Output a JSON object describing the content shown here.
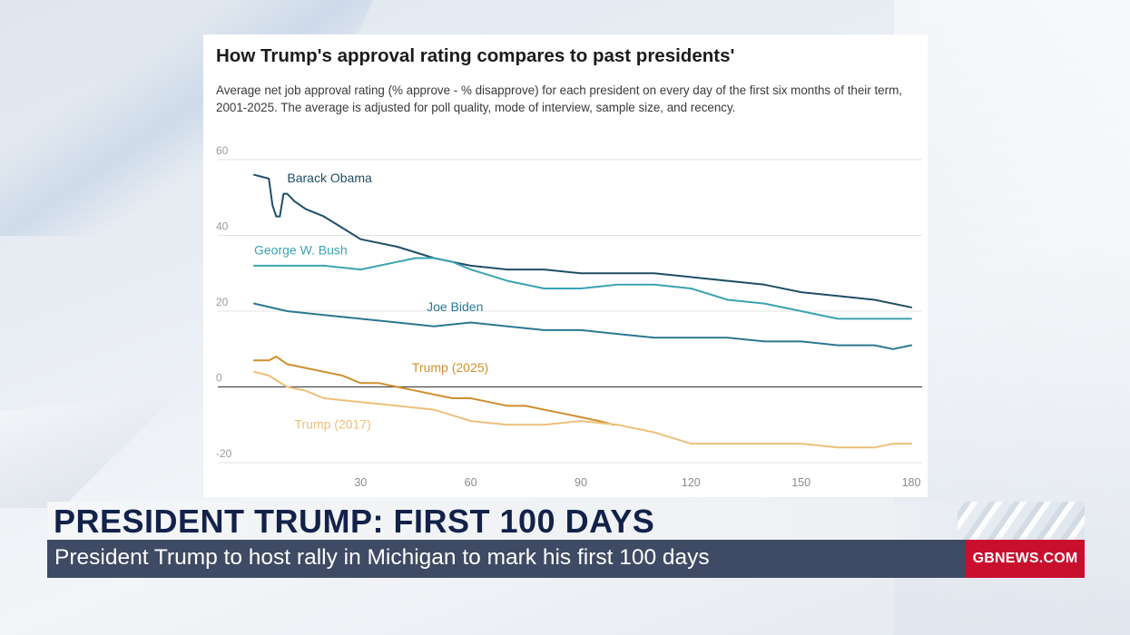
{
  "lower_third": {
    "headline": "PRESIDENT TRUMP: FIRST 100 DAYS",
    "ticker": "President Trump to host rally in Michigan to mark his first 100 days",
    "brand": "GBNEWS.COM"
  },
  "chart_data": {
    "type": "line",
    "title": "How Trump's approval rating compares to past presidents'",
    "subtitle": "Average net job approval rating (% approve - % disapprove) for each president on every day of the first six months of their term, 2001-2025. The average is adjusted for poll quality, mode of interview, sample size, and recency.",
    "xlabel": "",
    "ylabel": "",
    "xlim": [
      1,
      180
    ],
    "ylim": [
      -20,
      60
    ],
    "x_ticks": [
      30,
      60,
      90,
      120,
      150,
      180
    ],
    "y_ticks": [
      60,
      40,
      20,
      0,
      -20
    ],
    "grid": true,
    "legend": "inline labels",
    "series": [
      {
        "name": "Barack Obama",
        "color": "#1f4e66",
        "x": [
          1,
          5,
          6,
          7,
          8,
          9,
          10,
          12,
          15,
          20,
          25,
          30,
          40,
          50,
          60,
          70,
          80,
          90,
          100,
          110,
          120,
          130,
          140,
          150,
          160,
          170,
          180
        ],
        "y": [
          56,
          55,
          48,
          45,
          45,
          51,
          51,
          49,
          47,
          45,
          42,
          39,
          37,
          34,
          32,
          31,
          31,
          30,
          30,
          30,
          29,
          28,
          27,
          25,
          24,
          23,
          21
        ]
      },
      {
        "name": "George W. Bush",
        "color": "#3aa3b0",
        "x": [
          1,
          10,
          20,
          30,
          40,
          45,
          50,
          55,
          60,
          70,
          80,
          90,
          100,
          110,
          120,
          130,
          140,
          150,
          160,
          170,
          180
        ],
        "y": [
          32,
          32,
          32,
          31,
          33,
          34,
          34,
          33,
          31,
          28,
          26,
          26,
          27,
          27,
          26,
          23,
          22,
          20,
          18,
          18,
          18
        ]
      },
      {
        "name": "Joe Biden",
        "color": "#2b7890",
        "x": [
          1,
          10,
          20,
          30,
          40,
          50,
          60,
          70,
          80,
          90,
          100,
          110,
          120,
          130,
          140,
          150,
          160,
          170,
          175,
          180
        ],
        "y": [
          22,
          20,
          19,
          18,
          17,
          16,
          17,
          16,
          15,
          15,
          14,
          13,
          13,
          13,
          12,
          12,
          11,
          11,
          10,
          11
        ]
      },
      {
        "name": "Trump (2025)",
        "color": "#cf8f2e",
        "x": [
          1,
          5,
          7,
          10,
          15,
          20,
          25,
          30,
          35,
          40,
          45,
          50,
          55,
          60,
          65,
          70,
          75,
          80,
          85,
          90,
          95,
          99
        ],
        "y": [
          7,
          7,
          8,
          6,
          5,
          4,
          3,
          1,
          1,
          0,
          -1,
          -2,
          -3,
          -3,
          -4,
          -5,
          -5,
          -6,
          -7,
          -8,
          -9,
          -10
        ]
      },
      {
        "name": "Trump (2017)",
        "color": "#ecbf7a",
        "x": [
          1,
          5,
          10,
          15,
          20,
          30,
          40,
          50,
          60,
          70,
          80,
          90,
          100,
          110,
          120,
          130,
          140,
          150,
          160,
          170,
          175,
          180
        ],
        "y": [
          4,
          3,
          0,
          -1,
          -3,
          -4,
          -5,
          -6,
          -9,
          -10,
          -10,
          -9,
          -10,
          -12,
          -15,
          -15,
          -15,
          -15,
          -16,
          -16,
          -15,
          -15
        ]
      }
    ],
    "labels": [
      {
        "text": "Barack Obama",
        "series": "Barack Obama",
        "at_x": 10,
        "at_y": 54
      },
      {
        "text": "George W. Bush",
        "series": "George W. Bush",
        "at_x": 1,
        "at_y": 35
      },
      {
        "text": "Joe Biden",
        "series": "Joe Biden",
        "at_x": 48,
        "at_y": 20
      },
      {
        "text": "Trump (2025)",
        "series": "Trump (2025)",
        "at_x": 44,
        "at_y": 4
      },
      {
        "text": "Trump (2017)",
        "series": "Trump (2017)",
        "at_x": 12,
        "at_y": -11
      }
    ]
  }
}
